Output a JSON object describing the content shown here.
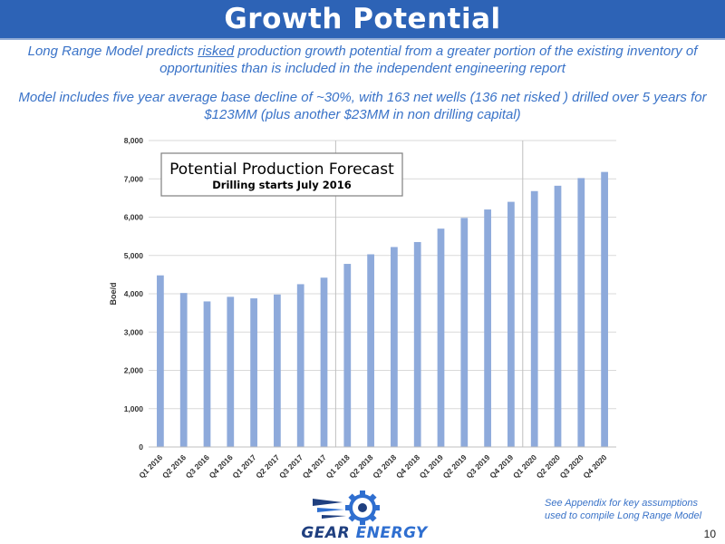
{
  "header": {
    "title": "Growth Potential"
  },
  "subtitle": {
    "line1_pre": "Long Range Model predicts ",
    "line1_underlined": "risked",
    "line1_post": " production growth potential from a greater portion of the existing inventory of opportunities than is included in the independent engineering report",
    "line2": "Model includes five year average base decline of ~30%, with 163 net wells (136 net risked ) drilled over 5 years for $123MM (plus another $23MM in non drilling capital)"
  },
  "chart_data": {
    "type": "bar",
    "title": "Potential Production Forecast",
    "subtitle": "Drilling starts July 2016",
    "xlabel": "",
    "ylabel": "Boe/d",
    "ylim": [
      0,
      8000
    ],
    "yticks": [
      "0",
      "1,000",
      "2,000",
      "3,000",
      "4,000",
      "5,000",
      "6,000",
      "7,000",
      "8,000"
    ],
    "grid": true,
    "categories": [
      "Q1 2016",
      "Q2 2016",
      "Q3 2016",
      "Q4 2016",
      "Q1 2017",
      "Q2 2017",
      "Q3 2017",
      "Q4 2017",
      "Q1 2018",
      "Q2 2018",
      "Q3 2018",
      "Q4 2018",
      "Q1 2019",
      "Q2 2019",
      "Q3 2019",
      "Q4 2019",
      "Q1 2020",
      "Q2 2020",
      "Q3 2020",
      "Q4 2020"
    ],
    "values": [
      4480,
      4020,
      3800,
      3920,
      3880,
      3980,
      4250,
      4420,
      4780,
      5030,
      5220,
      5350,
      5700,
      5980,
      6200,
      6400,
      6680,
      6820,
      7020,
      7180
    ],
    "bar_color": "#8eaadb"
  },
  "footnote": "See Appendix for key assumptions used to compile Long Range Model",
  "logo": {
    "text_gear": "GEAR",
    "text_energy": "ENERGY"
  },
  "page_number": "10"
}
